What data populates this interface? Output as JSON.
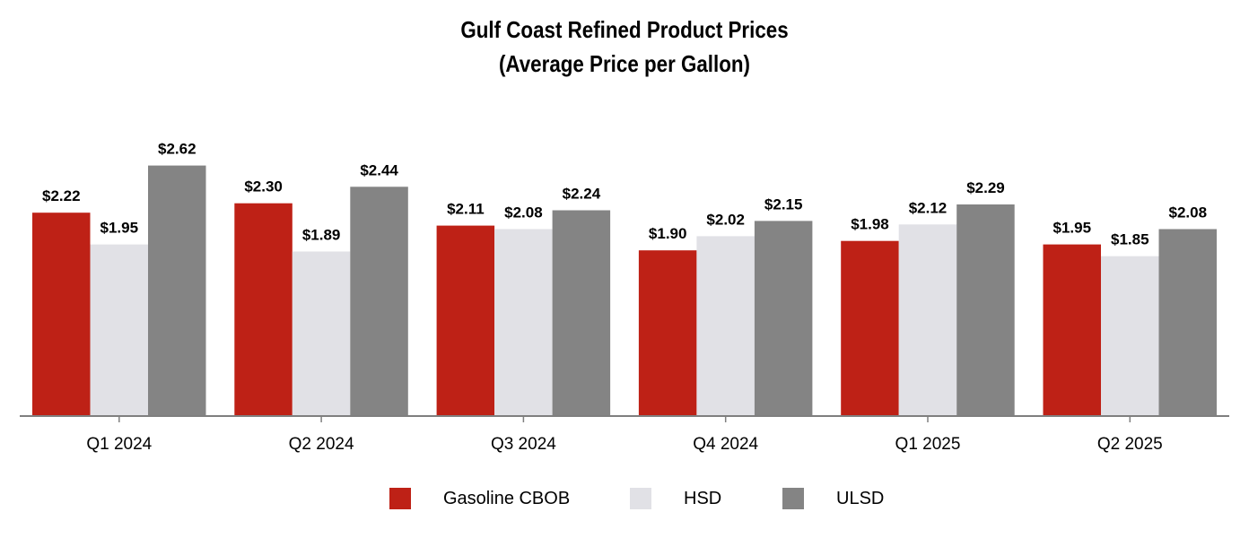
{
  "chart_data": {
    "type": "bar",
    "title": "Gulf Coast Refined Product Prices",
    "subtitle": "(Average Price per Gallon)",
    "categories": [
      "Q1 2024",
      "Q2 2024",
      "Q3 2024",
      "Q4 2024",
      "Q1 2025",
      "Q2 2025"
    ],
    "series": [
      {
        "name": "Gasoline CBOB",
        "color": "#BE2116",
        "values": [
          2.22,
          2.3,
          2.11,
          1.9,
          1.98,
          1.95
        ],
        "labels": [
          "$2.22",
          "$2.30",
          "$2.11",
          "$1.90",
          "$1.98",
          "$1.95"
        ]
      },
      {
        "name": "HSD",
        "color": "#E1E1E6",
        "values": [
          1.95,
          1.89,
          2.08,
          2.02,
          2.12,
          1.85
        ],
        "labels": [
          "$1.95",
          "$1.89",
          "$2.08",
          "$2.02",
          "$2.12",
          "$1.85"
        ]
      },
      {
        "name": "ULSD",
        "color": "#848484",
        "values": [
          2.62,
          2.44,
          2.24,
          2.15,
          2.29,
          2.08
        ],
        "labels": [
          "$2.62",
          "$2.44",
          "$2.24",
          "$2.15",
          "$2.29",
          "$2.08"
        ]
      }
    ],
    "xlabel": "",
    "ylabel": "",
    "ylim": [
      0.5,
      2.8
    ],
    "grid": false,
    "legend_position": "bottom-center",
    "axis_color": "#7F7F7F"
  }
}
